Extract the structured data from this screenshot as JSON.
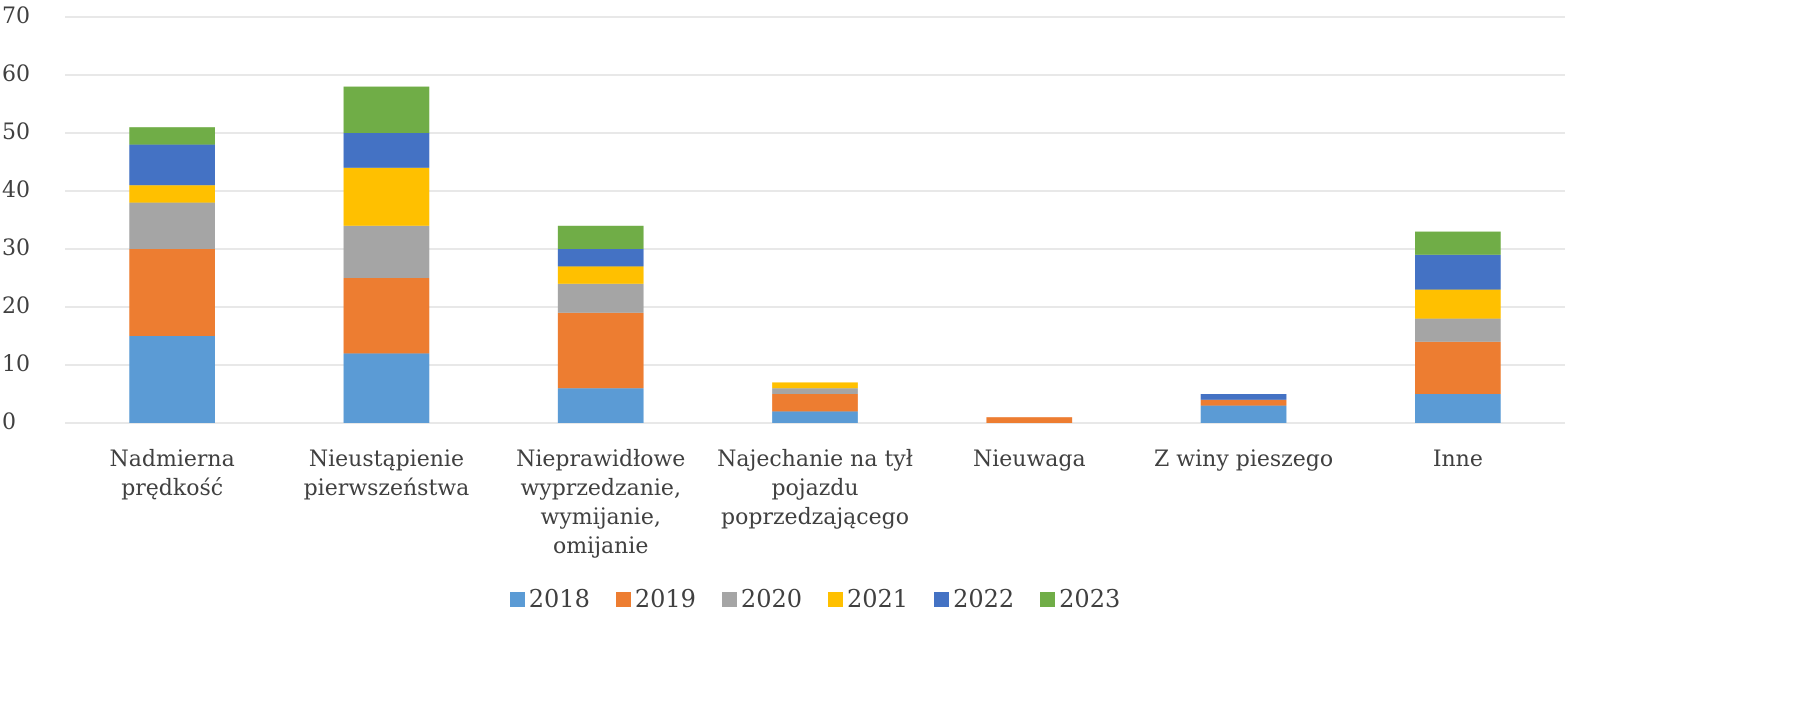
{
  "chart_data": {
    "type": "bar",
    "stacked": true,
    "categories": [
      "Nadmierna prędkość",
      "Nieustąpienie pierwszeństwa",
      "Nieprawidłowe wyprzedzanie, wymijanie, omijanie",
      "Najechanie na tył pojazdu poprzedzającego",
      "Nieuwaga",
      "Z winy pieszego",
      "Inne"
    ],
    "series": [
      {
        "name": "2018",
        "color": "#5b9bd5",
        "values": [
          15,
          12,
          6,
          2,
          0,
          3,
          5
        ]
      },
      {
        "name": "2019",
        "color": "#ed7d31",
        "values": [
          15,
          13,
          13,
          3,
          1,
          1,
          9
        ]
      },
      {
        "name": "2020",
        "color": "#a5a5a5",
        "values": [
          8,
          9,
          5,
          1,
          0,
          0,
          4
        ]
      },
      {
        "name": "2021",
        "color": "#ffc000",
        "values": [
          3,
          10,
          3,
          1,
          0,
          0,
          5
        ]
      },
      {
        "name": "2022",
        "color": "#4472c4",
        "values": [
          7,
          6,
          3,
          0,
          0,
          1,
          6
        ]
      },
      {
        "name": "2023",
        "color": "#70ad47",
        "values": [
          3,
          8,
          4,
          0,
          0,
          0,
          4
        ]
      }
    ],
    "ylim": [
      0,
      70
    ],
    "yticks": [
      0,
      10,
      20,
      30,
      40,
      50,
      60,
      70
    ],
    "grid": true,
    "legend": "bottom"
  }
}
